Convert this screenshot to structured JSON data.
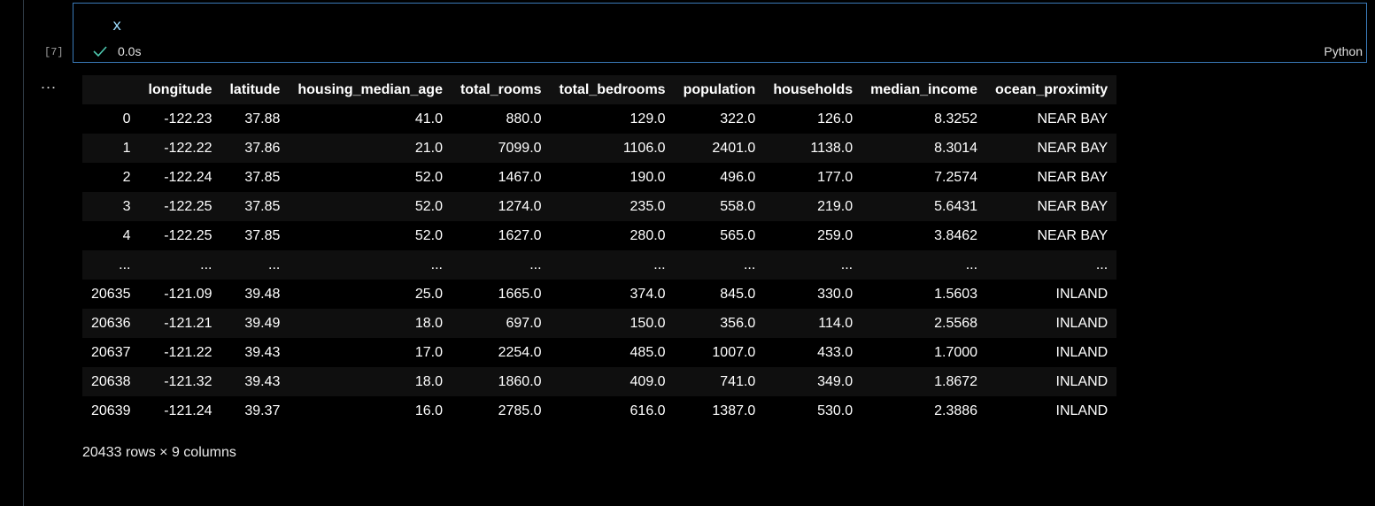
{
  "cell": {
    "execution_count": "[7]",
    "code": "x",
    "status_time": "0.0s",
    "language": "Python",
    "output_menu": "..."
  },
  "dataframe": {
    "columns": [
      "",
      "longitude",
      "latitude",
      "housing_median_age",
      "total_rooms",
      "total_bedrooms",
      "population",
      "households",
      "median_income",
      "ocean_proximity"
    ],
    "rows": [
      [
        "0",
        "-122.23",
        "37.88",
        "41.0",
        "880.0",
        "129.0",
        "322.0",
        "126.0",
        "8.3252",
        "NEAR BAY"
      ],
      [
        "1",
        "-122.22",
        "37.86",
        "21.0",
        "7099.0",
        "1106.0",
        "2401.0",
        "1138.0",
        "8.3014",
        "NEAR BAY"
      ],
      [
        "2",
        "-122.24",
        "37.85",
        "52.0",
        "1467.0",
        "190.0",
        "496.0",
        "177.0",
        "7.2574",
        "NEAR BAY"
      ],
      [
        "3",
        "-122.25",
        "37.85",
        "52.0",
        "1274.0",
        "235.0",
        "558.0",
        "219.0",
        "5.6431",
        "NEAR BAY"
      ],
      [
        "4",
        "-122.25",
        "37.85",
        "52.0",
        "1627.0",
        "280.0",
        "565.0",
        "259.0",
        "3.8462",
        "NEAR BAY"
      ],
      [
        "...",
        "...",
        "...",
        "...",
        "...",
        "...",
        "...",
        "...",
        "...",
        "..."
      ],
      [
        "20635",
        "-121.09",
        "39.48",
        "25.0",
        "1665.0",
        "374.0",
        "845.0",
        "330.0",
        "1.5603",
        "INLAND"
      ],
      [
        "20636",
        "-121.21",
        "39.49",
        "18.0",
        "697.0",
        "150.0",
        "356.0",
        "114.0",
        "2.5568",
        "INLAND"
      ],
      [
        "20637",
        "-121.22",
        "39.43",
        "17.0",
        "2254.0",
        "485.0",
        "1007.0",
        "433.0",
        "1.7000",
        "INLAND"
      ],
      [
        "20638",
        "-121.32",
        "39.43",
        "18.0",
        "1860.0",
        "409.0",
        "741.0",
        "349.0",
        "1.8672",
        "INLAND"
      ],
      [
        "20639",
        "-121.24",
        "39.37",
        "16.0",
        "2785.0",
        "616.0",
        "1387.0",
        "530.0",
        "2.3886",
        "INLAND"
      ]
    ],
    "shape_text": "20433 rows × 9 columns"
  },
  "colors": {
    "background": "#000000",
    "cell_border": "#3a7ab8",
    "code_text": "#9cdcfe",
    "success_check": "#4ec9b0"
  }
}
